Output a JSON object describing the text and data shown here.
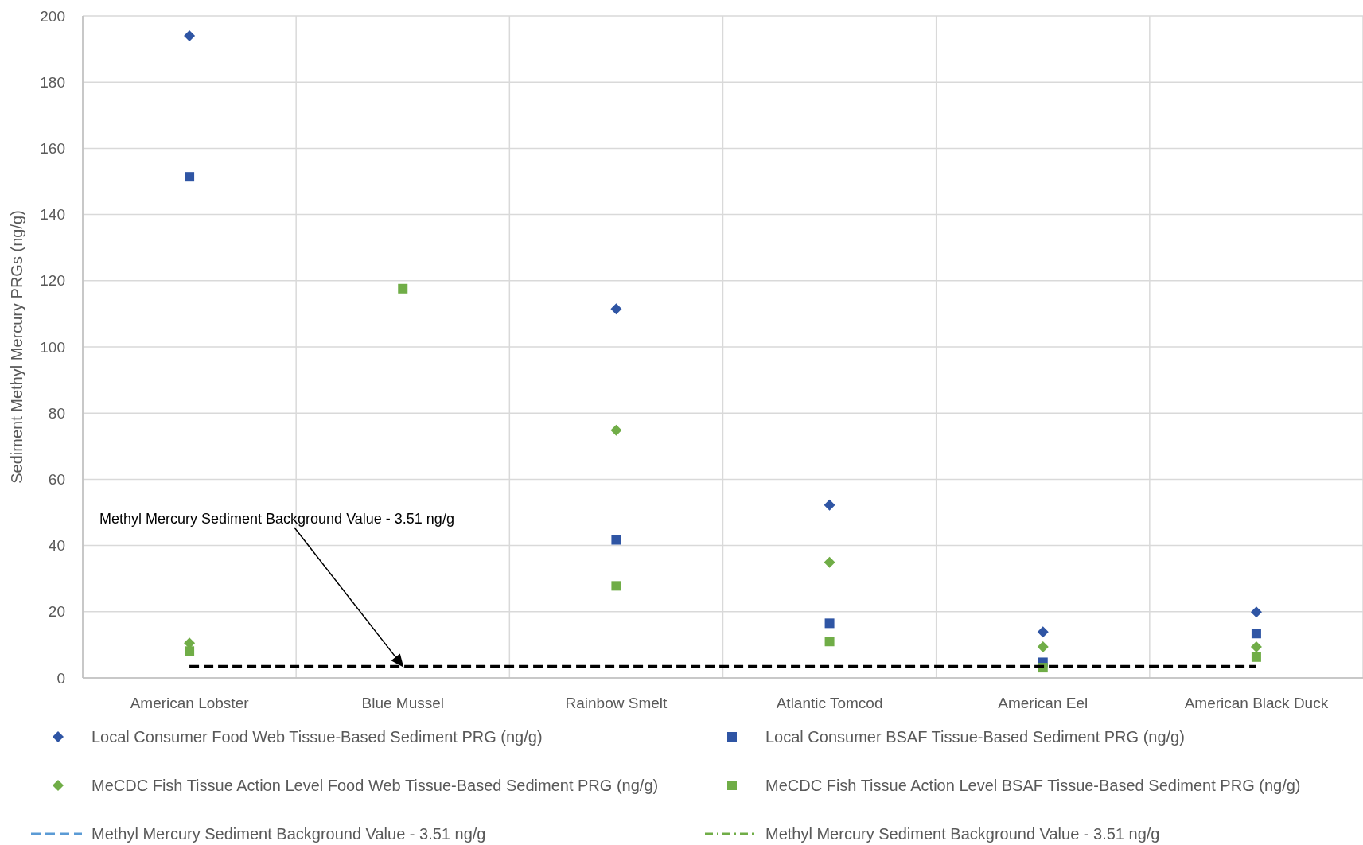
{
  "chart_data": {
    "type": "scatter",
    "ylabel": "Sediment Methyl Mercury PRGs (ng/g)",
    "categories": [
      "American Lobster",
      "Blue Mussel",
      "Rainbow Smelt",
      "Atlantic Tomcod",
      "American Eel",
      "American Black Duck"
    ],
    "ylim": [
      0,
      200
    ],
    "yticks": [
      0,
      20,
      40,
      60,
      80,
      100,
      120,
      140,
      160,
      180,
      200
    ],
    "grid": true,
    "legend": "bottom",
    "series": [
      {
        "name": "Local Consumer Food Web Tissue-Based Sediment PRG (ng/g)",
        "color": "#2f55a4",
        "marker": "diamond",
        "values": [
          194,
          null,
          111.5,
          52.2,
          13.9,
          19.9
        ]
      },
      {
        "name": "Local Consumer BSAF Tissue-Based Sediment PRG (ng/g)",
        "color": "#2f55a4",
        "marker": "square",
        "values": [
          151.4,
          null,
          41.7,
          16.5,
          4.7,
          13.4
        ]
      },
      {
        "name": "MeCDC Fish Tissue Action Level Food Web Tissue-Based Sediment PRG (ng/g)",
        "color": "#70ad47",
        "marker": "diamond",
        "values": [
          10.5,
          null,
          74.8,
          34.9,
          9.4,
          9.4
        ]
      },
      {
        "name": "MeCDC Fish Tissue Action Level BSAF Tissue-Based Sediment PRG (ng/g)",
        "color": "#70ad47",
        "marker": "square",
        "values": [
          8.1,
          117.6,
          27.8,
          11,
          3.1,
          6.3
        ]
      },
      {
        "name": "Methyl Mercury Sediment Background Value - 3.51 ng/g",
        "type": "line",
        "color": "#5b9bd5",
        "line_style": "dashed",
        "values": [
          null,
          null,
          null,
          null,
          null,
          null
        ]
      },
      {
        "name": "Methyl Mercury Sediment Background Value - 3.51 ng/g",
        "type": "line",
        "color": "#70ad47",
        "line_style": "dotted",
        "values": [
          null,
          null,
          null,
          null,
          null,
          null
        ]
      }
    ],
    "ref_lines": [
      {
        "axis": "y",
        "value": 3.51,
        "color": "#000000",
        "line_style": "dashed"
      }
    ],
    "annotations": [
      {
        "text": "Methyl Mercury Sediment Background Value - 3.51 ng/g",
        "x": "Blue Mussel",
        "y": 3.51
      }
    ]
  }
}
